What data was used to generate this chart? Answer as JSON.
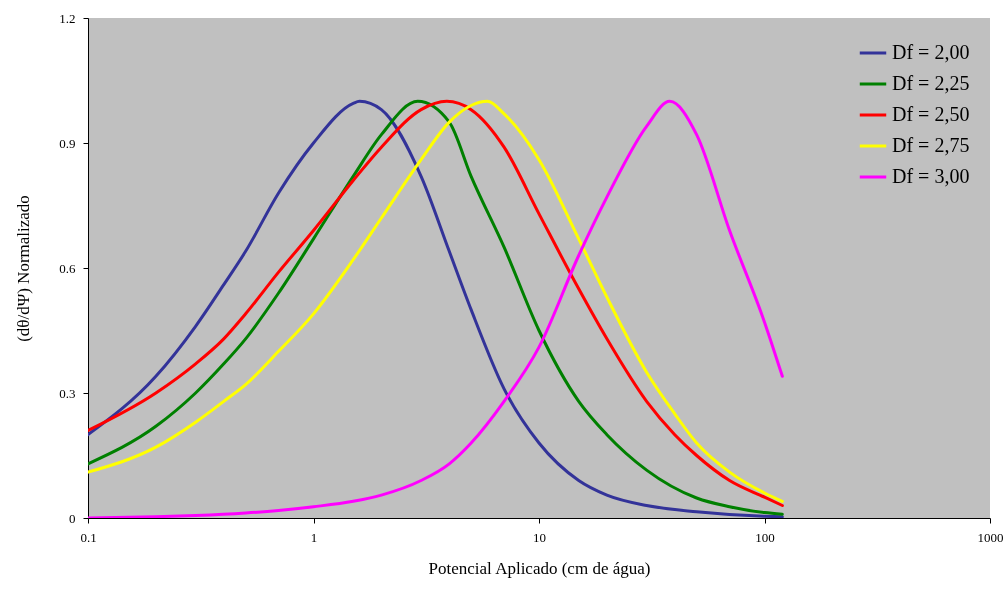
{
  "chart_data": {
    "type": "line",
    "xlabel": "Potencial Aplicado (cm de água)",
    "ylabel": "(dθ/dΨ) Normalizado",
    "log": "x",
    "xlim": [
      0.1,
      1000
    ],
    "xticks": [
      0.1,
      1,
      10,
      100,
      1000
    ],
    "ylim": [
      0,
      1.2
    ],
    "yticks": [
      0,
      0.3,
      0.6,
      0.9,
      1.2
    ],
    "legend": "top right",
    "series": [
      {
        "name": "Df = 2,00",
        "color": "#333399",
        "x": [
          0.1,
          0.2,
          0.3,
          0.4,
          0.5,
          0.7,
          1,
          1.5,
          1.6,
          2,
          3,
          4,
          5,
          7,
          10,
          15,
          20,
          30,
          50,
          100,
          120
        ],
        "values": [
          0.2,
          0.34,
          0.46,
          0.56,
          0.64,
          0.78,
          0.9,
          0.995,
          1.0,
          0.98,
          0.82,
          0.64,
          0.5,
          0.31,
          0.18,
          0.09,
          0.055,
          0.03,
          0.015,
          0.004,
          0.003
        ]
      },
      {
        "name": "Df = 2,25",
        "color": "#008000",
        "x": [
          0.1,
          0.2,
          0.3,
          0.4,
          0.5,
          0.7,
          1,
          1.5,
          2,
          2.9,
          4,
          5,
          7,
          10,
          15,
          20,
          30,
          50,
          70,
          100,
          120
        ],
        "values": [
          0.13,
          0.22,
          0.3,
          0.37,
          0.43,
          0.54,
          0.67,
          0.82,
          0.92,
          1.0,
          0.95,
          0.82,
          0.65,
          0.45,
          0.28,
          0.2,
          0.115,
          0.048,
          0.027,
          0.013,
          0.009
        ]
      },
      {
        "name": "Df = 2,50",
        "color": "#ff0000",
        "x": [
          0.1,
          0.2,
          0.3,
          0.4,
          0.5,
          0.7,
          1,
          1.5,
          2,
          3,
          3.9,
          5,
          7,
          10,
          15,
          20,
          30,
          40,
          50,
          70,
          100,
          120
        ],
        "values": [
          0.21,
          0.3,
          0.37,
          0.43,
          0.49,
          0.59,
          0.69,
          0.81,
          0.89,
          0.98,
          1.0,
          0.98,
          0.89,
          0.73,
          0.55,
          0.43,
          0.28,
          0.2,
          0.15,
          0.09,
          0.05,
          0.03
        ]
      },
      {
        "name": "Df = 2,75",
        "color": "#ffff00",
        "x": [
          0.1,
          0.2,
          0.3,
          0.4,
          0.5,
          0.7,
          1,
          1.5,
          2,
          3,
          4,
          5,
          5.9,
          7,
          10,
          15,
          20,
          30,
          40,
          50,
          70,
          100,
          120
        ],
        "values": [
          0.11,
          0.17,
          0.23,
          0.28,
          0.32,
          0.4,
          0.49,
          0.62,
          0.72,
          0.86,
          0.95,
          0.99,
          1.0,
          0.97,
          0.86,
          0.67,
          0.53,
          0.35,
          0.25,
          0.18,
          0.11,
          0.06,
          0.04
        ]
      },
      {
        "name": "Df = 3,00",
        "color": "#ff00ff",
        "x": [
          0.1,
          0.2,
          0.3,
          0.5,
          0.7,
          1,
          1.5,
          2,
          3,
          4,
          5,
          7,
          10,
          15,
          20,
          30,
          38,
          50,
          70,
          100,
          120
        ],
        "values": [
          0.0,
          0.003,
          0.006,
          0.012,
          0.018,
          0.027,
          0.04,
          0.055,
          0.09,
          0.13,
          0.18,
          0.28,
          0.41,
          0.63,
          0.77,
          0.94,
          1.0,
          0.92,
          0.69,
          0.47,
          0.34
        ]
      }
    ]
  }
}
